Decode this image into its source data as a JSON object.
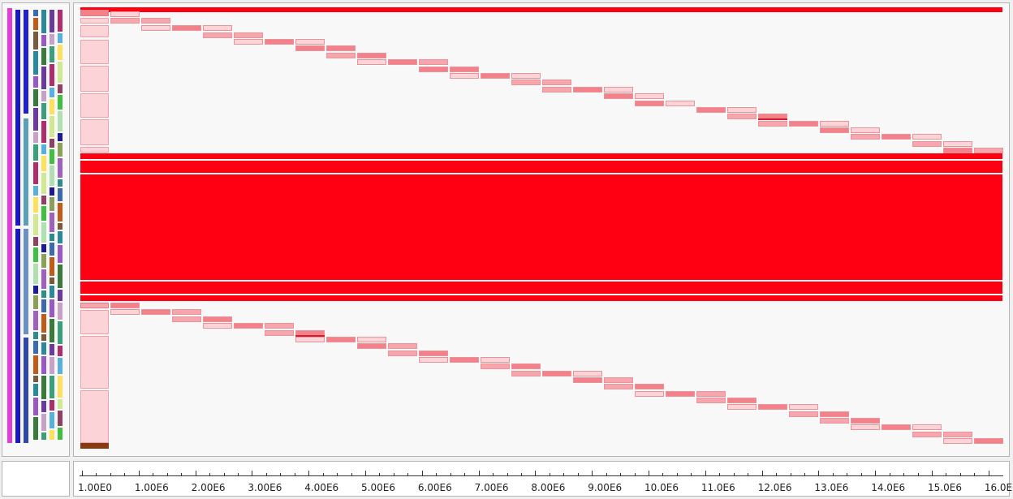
{
  "axis": {
    "tick_labels": [
      "1.00E0",
      "1.00E6",
      "2.00E6",
      "3.00E6",
      "4.00E6",
      "5.00E6",
      "6.00E6",
      "7.00E6",
      "8.00E6",
      "9.00E6",
      "10.0E6",
      "11.0E6",
      "12.0E6",
      "13.0E6",
      "14.0E6",
      "15.0E6",
      "16.0E6"
    ]
  },
  "colors": {
    "main_red": "#ff0012",
    "block_dark": "#f4808a",
    "block_mid": "#f8a6ad",
    "block_light": "#fcd4d7",
    "panel_bg": "#f8f8f8"
  },
  "tree": {
    "column_colors": [
      "#e23ce2",
      "#1a1ad0",
      "#1a1ad0",
      "#5ab0c8",
      "#44c8c8",
      "#c0c0c0"
    ]
  }
}
